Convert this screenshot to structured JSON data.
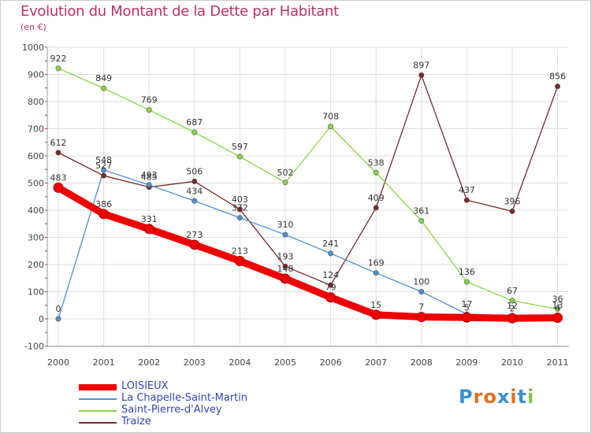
{
  "title": "Evolution du Montant de la Dette par Habitant",
  "subtitle": "(en €)",
  "logo_text": "Proxiti",
  "chart_data": {
    "type": "line",
    "x": [
      "2000",
      "2001",
      "2002",
      "2003",
      "2004",
      "2005",
      "2006",
      "2007",
      "2008",
      "2009",
      "2010",
      "2011"
    ],
    "ylim": [
      -100,
      1000
    ],
    "yticks": [
      "-100",
      "0",
      "100",
      "200",
      "300",
      "400",
      "500",
      "600",
      "700",
      "800",
      "900",
      "1000"
    ],
    "grid": true,
    "legend_position": "bottom-left",
    "series": [
      {
        "name": "LOISIEUX",
        "color": "#ee0000",
        "values": [
          483,
          386,
          331,
          273,
          213,
          148,
          79,
          15,
          7,
          5,
          2,
          4
        ],
        "labels": [
          "483",
          "386",
          "331",
          "273",
          "213",
          "",
          "",
          "15",
          "7",
          "",
          "",
          ""
        ]
      },
      {
        "name": "La Chapelle-Saint-Martin",
        "color": "#4f8fcf",
        "values": [
          0,
          548,
          493,
          434,
          372,
          310,
          241,
          169,
          100,
          17,
          12,
          13
        ],
        "labels": [
          "0",
          "548",
          "493",
          "434",
          "372",
          "310",
          "241",
          "169",
          "100",
          "17",
          "12",
          "13"
        ]
      },
      {
        "name": "Saint-Pierre-d'Alvey",
        "color": "#88d448",
        "values": [
          922,
          849,
          769,
          687,
          597,
          502,
          708,
          538,
          361,
          136,
          67,
          36
        ],
        "labels": [
          "922",
          "849",
          "769",
          "687",
          "597",
          "502",
          "708",
          "538",
          "361",
          "136",
          "67",
          "36"
        ]
      },
      {
        "name": "Traize",
        "color": "#772a2a",
        "values": [
          612,
          527,
          485,
          506,
          403,
          193,
          124,
          409,
          897,
          437,
          396,
          856
        ],
        "labels": [
          "612",
          "527",
          "485",
          "506",
          "403",
          "193",
          "124",
          "409",
          "897",
          "437",
          "396",
          "856"
        ]
      }
    ],
    "extra_labels": [
      "148",
      "79",
      "5",
      "2",
      "4"
    ]
  }
}
